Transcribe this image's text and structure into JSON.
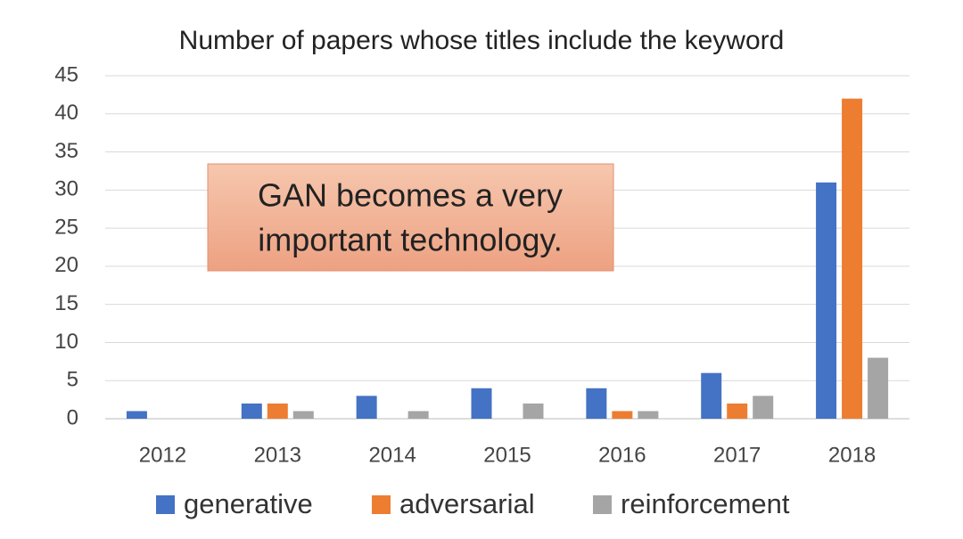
{
  "chart_data": {
    "type": "bar",
    "title": "Number of papers whose titles include the keyword",
    "annotation": [
      "GAN becomes a very",
      "important technology."
    ],
    "categories": [
      "2012",
      "2013",
      "2014",
      "2015",
      "2016",
      "2017",
      "2018"
    ],
    "series": [
      {
        "name": "generative",
        "color": "#4472c4",
        "values": [
          1,
          2,
          3,
          4,
          4,
          6,
          31
        ]
      },
      {
        "name": "adversarial",
        "color": "#ed7d31",
        "values": [
          0,
          2,
          0,
          0,
          1,
          2,
          42
        ]
      },
      {
        "name": "reinforcement",
        "color": "#a5a5a5",
        "values": [
          0,
          1,
          1,
          2,
          1,
          3,
          8
        ]
      }
    ],
    "ylim": [
      0,
      45
    ],
    "yticks": [
      0,
      5,
      10,
      15,
      20,
      25,
      30,
      35,
      40,
      45
    ],
    "grid": true,
    "legend": "bottom"
  }
}
